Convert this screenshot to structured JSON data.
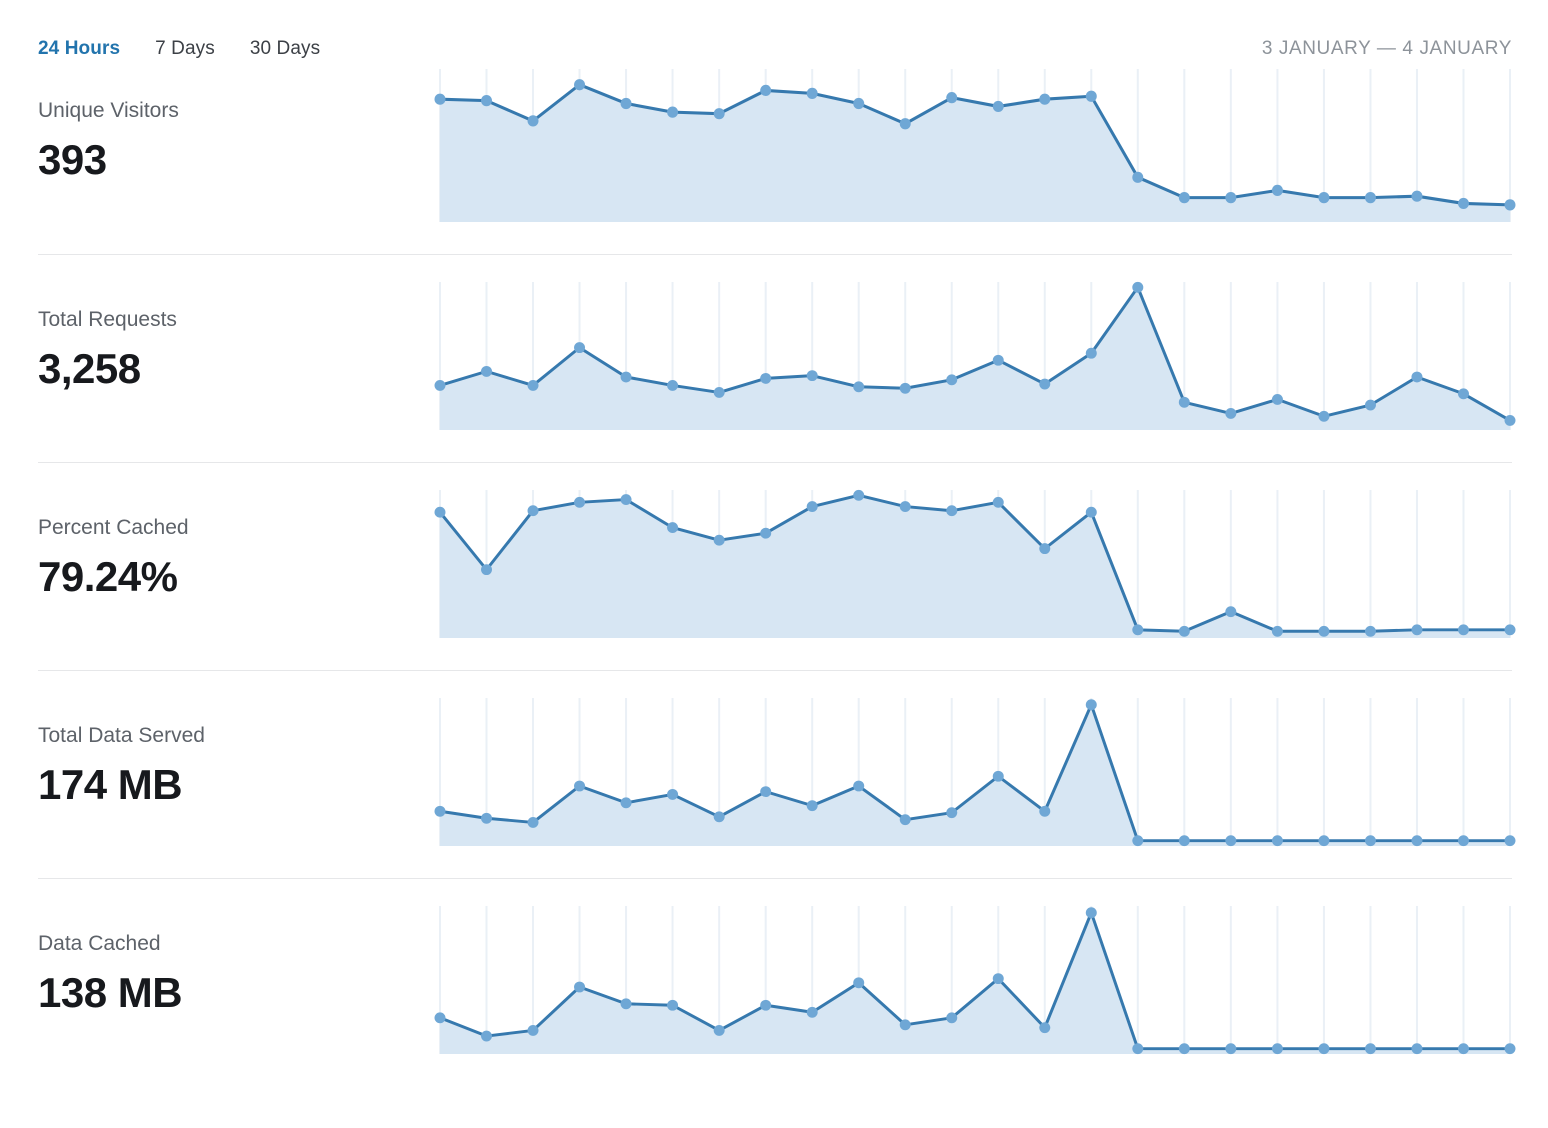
{
  "header": {
    "tabs": [
      {
        "label": "24 Hours",
        "active": true
      },
      {
        "label": "7 Days",
        "active": false
      },
      {
        "label": "30 Days",
        "active": false
      }
    ],
    "date_range": "3 JANUARY — 4 JANUARY"
  },
  "palette": {
    "accent_blue": "#2274ad",
    "line": "#3679ae",
    "dot": "#6fa7d5",
    "fill": "#d7e6f3",
    "gridline": "#eaf0f6",
    "divider": "#e6e7e9",
    "text_dark": "#17191d",
    "text_muted": "#5d6269",
    "date_gray": "#8d939a"
  },
  "chart_data": [
    {
      "type": "area",
      "title": "Unique Visitors",
      "summary_value": "393",
      "x": "hourly points, 3 January — 4 January (24 points, no x tick labels shown)",
      "ylabel": "",
      "unit": "relative height, % of chart max (y-axis unlabeled in UI)",
      "ylim": [
        0,
        100
      ],
      "grid": "light vertical gridline at each point",
      "legend": "none",
      "values": [
        82,
        81,
        67,
        92,
        79,
        73,
        72,
        88,
        86,
        79,
        65,
        83,
        77,
        82,
        84,
        28,
        14,
        14,
        19,
        14,
        14,
        15,
        10,
        9
      ]
    },
    {
      "type": "area",
      "title": "Total Requests",
      "summary_value": "3,258",
      "x": "hourly points, 3 January — 4 January (24 points, no x tick labels shown)",
      "ylabel": "",
      "unit": "relative height, % of chart max (y-axis unlabeled in UI)",
      "ylim": [
        0,
        100
      ],
      "grid": "light vertical gridline at each point",
      "legend": "none",
      "values": [
        29,
        39,
        29,
        56,
        35,
        29,
        24,
        34,
        36,
        28,
        27,
        33,
        47,
        30,
        52,
        99,
        17,
        9,
        19,
        7,
        15,
        35,
        23,
        4
      ]
    },
    {
      "type": "area",
      "title": "Percent Cached",
      "summary_value": "79.24%",
      "x": "hourly points, 3 January — 4 January (24 points, no x tick labels shown)",
      "ylabel": "",
      "unit": "relative height, % of chart max (y-axis unlabeled in UI)",
      "ylim": [
        0,
        100
      ],
      "grid": "light vertical gridline at each point",
      "legend": "none",
      "values": [
        87,
        46,
        88,
        94,
        96,
        76,
        67,
        72,
        91,
        99,
        91,
        88,
        94,
        61,
        87,
        3,
        2,
        16,
        2,
        2,
        2,
        3,
        3,
        3
      ]
    },
    {
      "type": "area",
      "title": "Total Data Served",
      "summary_value": "174 MB",
      "x": "hourly points, 3 January — 4 January (24 points, no x tick labels shown)",
      "ylabel": "",
      "unit": "relative height, % of chart max (y-axis unlabeled in UI)",
      "ylim": [
        0,
        100
      ],
      "grid": "light vertical gridline at each point",
      "legend": "none",
      "values": [
        22,
        17,
        14,
        40,
        28,
        34,
        18,
        36,
        26,
        40,
        16,
        21,
        47,
        22,
        98,
        1,
        1,
        1,
        1,
        1,
        1,
        1,
        1,
        1
      ]
    },
    {
      "type": "area",
      "title": "Data Cached",
      "summary_value": "138 MB",
      "x": "hourly points, 3 January — 4 January (24 points, no x tick labels shown)",
      "ylabel": "",
      "unit": "relative height, % of chart max (y-axis unlabeled in UI)",
      "ylim": [
        0,
        100
      ],
      "grid": "light vertical gridline at each point",
      "legend": "none",
      "values": [
        23,
        10,
        14,
        45,
        33,
        32,
        14,
        32,
        27,
        48,
        18,
        23,
        51,
        16,
        98,
        1,
        1,
        1,
        1,
        1,
        1,
        1,
        1,
        1
      ]
    }
  ]
}
